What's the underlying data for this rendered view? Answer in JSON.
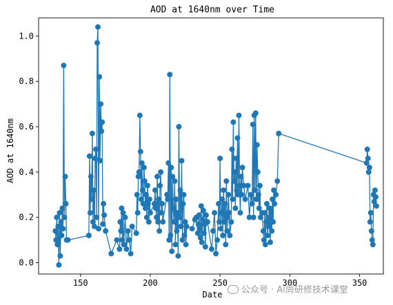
{
  "chart_data": {
    "type": "line",
    "title": "AOD at 1640nm over Time",
    "xlabel": "Date",
    "ylabel": "AOD at 1640nm",
    "xlim": [
      120,
      367
    ],
    "ylim": [
      -0.05,
      1.08
    ],
    "xticks": [
      150,
      200,
      250,
      300,
      350
    ],
    "yticks": [
      0.0,
      0.2,
      0.4,
      0.6,
      0.8,
      1.0
    ],
    "xtick_labels": [
      "150",
      "200",
      "250",
      "300",
      "350"
    ],
    "ytick_labels": [
      "0.0",
      "0.2",
      "0.4",
      "0.6",
      "0.8",
      "1.0"
    ],
    "grid": false,
    "marker": "circle",
    "color": "#1f77b4",
    "series": [
      {
        "x": [
          132,
          132.5,
          133,
          133.5,
          134,
          134.5,
          135,
          135.5,
          136,
          136.5,
          137,
          137.5,
          138,
          138.5,
          139,
          139.5,
          140,
          141,
          156,
          156.5,
          157,
          157.5,
          158,
          158.5,
          159,
          159.5,
          160,
          160.5,
          161,
          161.5,
          162,
          162.5,
          163,
          163.5,
          164,
          164.5,
          165,
          165.5,
          166,
          166.5,
          167,
          168,
          172,
          176,
          178,
          178.5,
          179,
          179.5,
          180,
          180.5,
          181,
          182,
          183,
          184,
          185,
          186,
          187,
          190,
          190.5,
          191,
          191.5,
          192,
          192.5,
          193,
          193.5,
          194,
          194.5,
          195,
          195.5,
          196,
          196.5,
          197,
          197.5,
          198,
          198.5,
          199,
          199.5,
          200,
          203,
          203.5,
          204,
          204.5,
          205,
          205.5,
          206,
          206.5,
          207,
          207.5,
          208,
          208.5,
          209,
          212,
          212.5,
          213,
          213.5,
          214,
          214.5,
          215,
          215.5,
          216,
          216.5,
          217,
          217.5,
          218,
          218.5,
          219,
          219.5,
          220,
          220.5,
          221,
          221.5,
          222,
          222.5,
          223,
          223.5,
          224,
          224.5,
          225,
          225.5,
          226,
          230,
          232,
          233,
          234,
          234.5,
          235,
          235.5,
          236,
          236.5,
          237,
          237.5,
          238,
          238.5,
          239,
          239.5,
          240,
          241,
          244,
          245,
          246,
          247,
          248,
          249,
          249.5,
          250,
          250.5,
          251,
          251.5,
          252,
          252.5,
          253,
          253.5,
          254,
          254.5,
          255,
          255.5,
          256,
          256.5,
          257,
          258,
          258.5,
          259,
          259.5,
          260,
          260.5,
          261,
          261.5,
          262,
          262.5,
          263,
          263.5,
          264,
          264.5,
          265,
          265.5,
          266,
          267,
          268,
          270,
          271,
          272,
          273,
          273.5,
          274,
          274.5,
          275,
          275.5,
          276,
          276.5,
          277,
          277.5,
          278,
          278.5,
          279,
          280,
          281,
          281.5,
          282,
          282.5,
          283,
          283.5,
          284,
          284.5,
          285,
          285.5,
          286,
          286.5,
          287,
          287.5,
          288,
          288.5,
          289,
          290,
          291,
          292,
          355,
          355.5,
          356,
          356.5,
          357,
          357.5,
          358,
          358.5,
          359,
          359.5,
          360,
          360.5,
          361,
          361.5,
          362
        ],
        "y": [
          0.14,
          0.1,
          0.2,
          0.08,
          0.16,
          -0.01,
          0.22,
          0.03,
          0.18,
          0.12,
          0.24,
          0.15,
          0.87,
          0.2,
          0.38,
          0.26,
          0.1,
          0.1,
          0.12,
          0.47,
          0.22,
          0.38,
          0.28,
          0.57,
          0.18,
          0.32,
          0.16,
          0.46,
          0.5,
          0.2,
          0.97,
          1.04,
          0.15,
          0.82,
          0.45,
          0.7,
          0.58,
          0.62,
          0.17,
          0.26,
          0.21,
          0.14,
          0.04,
          0.1,
          0.06,
          0.18,
          0.14,
          0.24,
          0.1,
          0.22,
          0.08,
          0.2,
          0.06,
          0.14,
          0.1,
          0.04,
          0.16,
          0.13,
          0.3,
          0.22,
          0.38,
          0.4,
          0.65,
          0.49,
          0.28,
          0.44,
          0.32,
          0.26,
          0.42,
          0.36,
          0.24,
          0.3,
          0.2,
          0.34,
          0.26,
          0.18,
          0.28,
          0.22,
          0.26,
          0.32,
          0.24,
          0.2,
          0.38,
          0.18,
          0.28,
          0.14,
          0.34,
          0.4,
          0.22,
          0.26,
          0.18,
          0.3,
          0.28,
          0.44,
          0.1,
          0.83,
          0.12,
          0.42,
          0.05,
          0.38,
          0.24,
          0.18,
          0.36,
          0.08,
          0.28,
          0.14,
          0.22,
          0.03,
          0.6,
          0.2,
          0.32,
          0.16,
          0.45,
          0.1,
          0.26,
          0.3,
          0.12,
          0.18,
          0.08,
          0.16,
          0.15,
          0.19,
          0.2,
          0.13,
          0.17,
          0.21,
          0.15,
          0.11,
          0.25,
          0.09,
          0.19,
          0.23,
          0.13,
          0.17,
          0.07,
          0.21,
          0.18,
          0.06,
          0.14,
          0.22,
          0.04,
          0.1,
          0.26,
          0.18,
          0.46,
          0.15,
          0.22,
          0.28,
          0.12,
          0.32,
          0.18,
          0.26,
          0.08,
          0.36,
          0.14,
          0.2,
          0.3,
          0.22,
          0.12,
          0.18,
          0.5,
          0.28,
          0.62,
          0.36,
          0.4,
          0.24,
          0.46,
          0.32,
          0.55,
          0.3,
          0.65,
          0.34,
          0.22,
          0.38,
          0.3,
          0.42,
          0.34,
          0.28,
          0.34,
          0.2,
          0.3,
          0.26,
          0.61,
          0.2,
          0.65,
          0.32,
          0.66,
          0.28,
          0.52,
          0.4,
          0.3,
          0.24,
          0.34,
          0.2,
          0.22,
          0.14,
          0.1,
          0.22,
          0.08,
          0.18,
          0.26,
          0.12,
          0.2,
          0.16,
          0.24,
          0.09,
          0.22,
          0.14,
          0.28,
          0.18,
          0.32,
          0.26,
          0.3,
          0.36,
          0.57,
          0.44,
          0.5,
          0.46,
          0.4,
          0.42,
          0.18,
          0.22,
          0.14,
          0.1,
          0.08,
          0.3,
          0.27,
          0.32,
          0.29,
          0.25
        ]
      }
    ]
  },
  "watermark": {
    "text": "公众号 · Ai尚研修技术课堂"
  }
}
